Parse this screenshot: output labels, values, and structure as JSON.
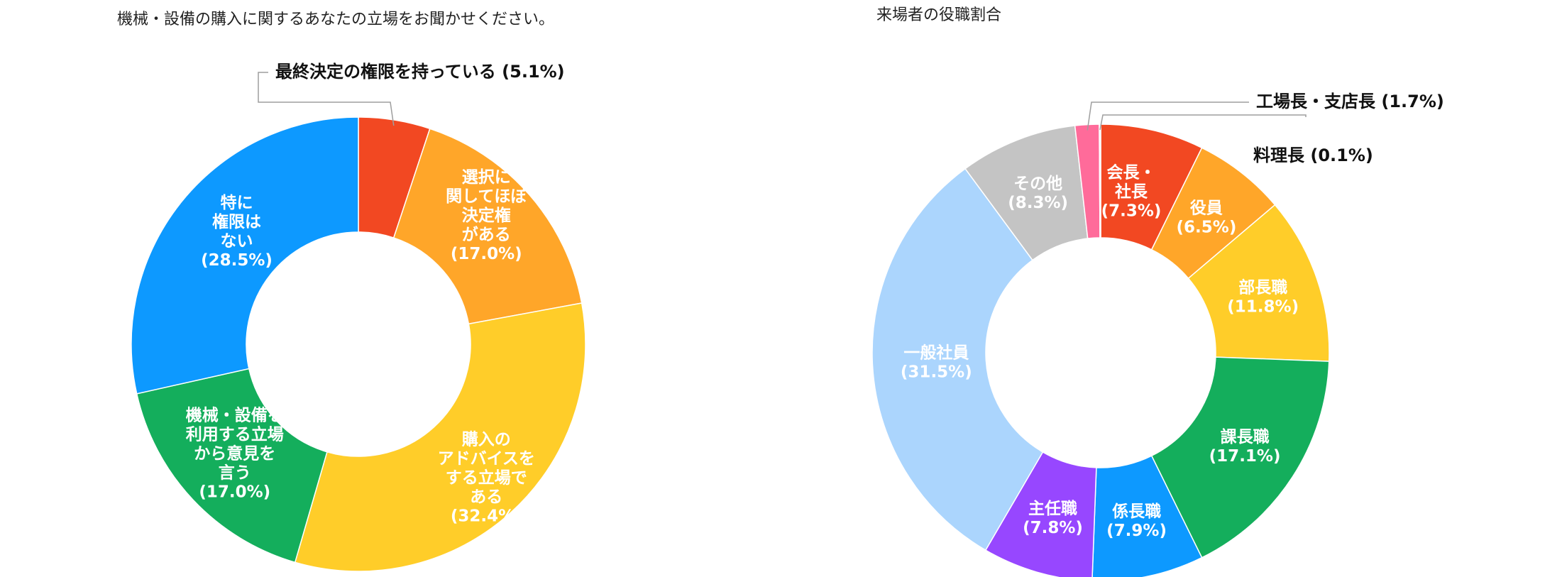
{
  "chart_data": [
    {
      "type": "pie",
      "title": "機械・設備の購入に関するあなたの立場をお聞かせください。",
      "series": [
        {
          "values": [
            5.1,
            17.0,
            32.4,
            17.0,
            28.5
          ],
          "labels": [
            "最終決定の権限を持っている (5.1%)",
            "選択に関してほぼ決定権がある (17.0%)",
            "購入のアドバイスをする立場である (32.4%)",
            "機械・設備を利用する立場から意見を言う (17.0%)",
            "特に権限はない (28.5%)"
          ],
          "colors": [
            "#F24822",
            "#FFA629",
            "#FFCD29",
            "#14AE5C",
            "#0D99FF"
          ],
          "label_lines": [
            [
              "最終決定の権限を持っている (5.1%)"
            ],
            [
              "選択に",
              "関してほぼ",
              "決定権",
              "がある",
              "(17.0%)"
            ],
            [
              "購入の",
              "アドバイスを",
              "する立場で",
              "ある",
              "(32.4%)"
            ],
            [
              "機械・設備を",
              "利用する立場",
              "から意見を",
              "言う",
              "(17.0%)"
            ],
            [
              "特に",
              "権限は",
              "ない",
              "(28.5%)"
            ]
          ]
        }
      ]
    },
    {
      "type": "pie",
      "title": "来場者の役職割合",
      "series": [
        {
          "values": [
            7.3,
            6.5,
            11.8,
            17.1,
            7.9,
            7.8,
            31.5,
            8.3,
            1.7,
            0.1
          ],
          "labels": [
            "会長・社長 (7.3%)",
            "役員 (6.5%)",
            "部長職 (11.8%)",
            "課長職 (17.1%)",
            "係長職 (7.9%)",
            "主任職 (7.8%)",
            "一般社員 (31.5%)",
            "その他 (8.3%)",
            "工場長・支店長 (1.7%)",
            "料理長 (0.1%)"
          ],
          "colors": [
            "#F24822",
            "#FFA629",
            "#FFCD29",
            "#14AE5C",
            "#0D99FF",
            "#9747FF",
            "#ABD5FD",
            "#C4C4C4",
            "#FF6B9A",
            "#E6E6E6"
          ],
          "label_lines": [
            [
              "会長・",
              "社長",
              "(7.3%)"
            ],
            [
              "役員",
              "(6.5%)"
            ],
            [
              "部長職",
              "(11.8%)"
            ],
            [
              "課長職",
              "(17.1%)"
            ],
            [
              "係長職",
              "(7.9%)"
            ],
            [
              "主任職",
              "(7.8%)"
            ],
            [
              "一般社員",
              "(31.5%)"
            ],
            [
              "その他",
              "(8.3%)"
            ],
            [
              "工場長・支店長 (1.7%)"
            ],
            [
              "料理長 (0.1%)"
            ]
          ]
        }
      ]
    }
  ]
}
